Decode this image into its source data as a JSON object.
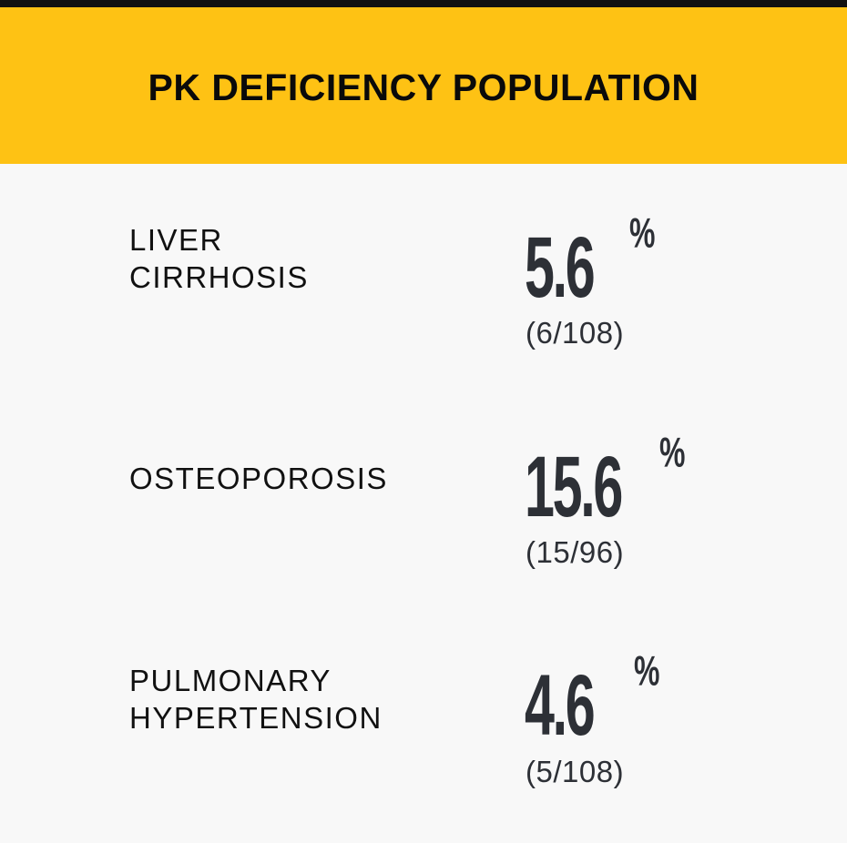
{
  "header": {
    "title": "PK DEFICIENCY POPULATION"
  },
  "stats": [
    {
      "label_lines": [
        "LIVER",
        "CIRRHOSIS"
      ],
      "value": "5.6",
      "unit": "%",
      "fraction": "(6/108)"
    },
    {
      "label_lines": [
        "OSTEOPOROSIS"
      ],
      "value": "15.6",
      "unit": "%",
      "fraction": "(15/96)"
    },
    {
      "label_lines": [
        "PULMONARY",
        "HYPERTENSION"
      ],
      "value": "4.6",
      "unit": "%",
      "fraction": "(5/108)"
    }
  ],
  "colors": {
    "header_background": "#FEC214",
    "panel_background": "#F8F8F8",
    "value_text": "#2D3036",
    "label_text": "#111111"
  }
}
